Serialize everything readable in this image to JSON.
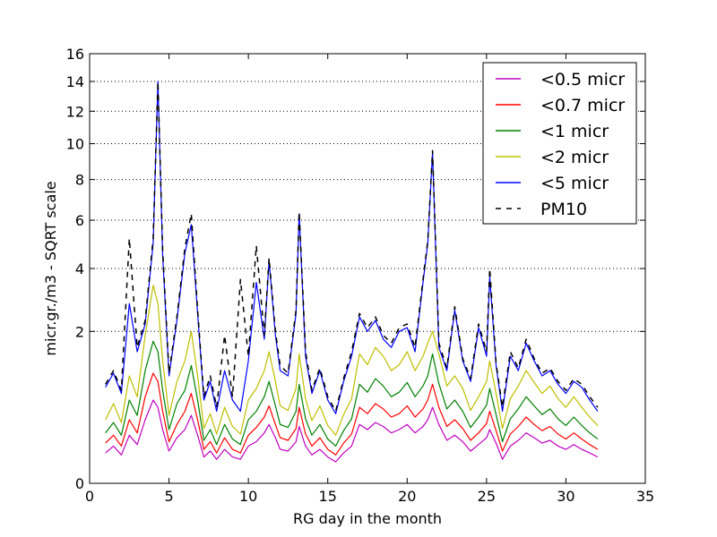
{
  "chart_data": {
    "type": "line",
    "title": "",
    "xlabel": "RG day in the month",
    "ylabel": "micr.gr./m3 - SQRT scale",
    "xlim": [
      0,
      35
    ],
    "ylim": [
      0,
      16
    ],
    "y_scale": "sqrt",
    "grid": "horizontal-dotted",
    "legend_placement": "top-right",
    "x_ticks": [
      0,
      5,
      10,
      15,
      20,
      25,
      30,
      35
    ],
    "y_ticks": [
      0,
      2,
      4,
      6,
      8,
      10,
      12,
      14,
      16
    ],
    "x": [
      1,
      1.5,
      2,
      2.5,
      3,
      3.5,
      4,
      4.3,
      4.6,
      5,
      5.5,
      6,
      6.4,
      6.8,
      7.2,
      7.6,
      8,
      8.5,
      9,
      9.5,
      10,
      10.5,
      11,
      11.3,
      11.7,
      12,
      12.5,
      13,
      13.2,
      13.6,
      14,
      14.5,
      15,
      15.5,
      16,
      16.5,
      17,
      17.5,
      18,
      18.5,
      19,
      19.5,
      20,
      20.5,
      21,
      21.3,
      21.6,
      22,
      22.5,
      23,
      23.5,
      24,
      24.5,
      25,
      25.2,
      25.6,
      26,
      26.5,
      27,
      27.5,
      28,
      28.5,
      29,
      29.5,
      30,
      30.5,
      31,
      31.5,
      32
    ],
    "series": [
      {
        "name": "<0.5 micr",
        "color": "#bf00bf",
        "dash": "solid",
        "values": [
          0.08,
          0.12,
          0.07,
          0.2,
          0.13,
          0.35,
          0.6,
          0.5,
          0.25,
          0.09,
          0.18,
          0.25,
          0.4,
          0.2,
          0.06,
          0.09,
          0.05,
          0.1,
          0.06,
          0.05,
          0.12,
          0.15,
          0.22,
          0.3,
          0.18,
          0.1,
          0.09,
          0.15,
          0.28,
          0.12,
          0.07,
          0.1,
          0.06,
          0.04,
          0.08,
          0.12,
          0.3,
          0.25,
          0.32,
          0.28,
          0.22,
          0.25,
          0.3,
          0.22,
          0.28,
          0.35,
          0.5,
          0.3,
          0.16,
          0.2,
          0.15,
          0.09,
          0.13,
          0.18,
          0.25,
          0.14,
          0.05,
          0.12,
          0.16,
          0.22,
          0.18,
          0.14,
          0.16,
          0.12,
          0.1,
          0.13,
          0.1,
          0.08,
          0.06
        ]
      },
      {
        "name": "<0.7 micr",
        "color": "#ff0000",
        "dash": "solid",
        "values": [
          0.14,
          0.2,
          0.12,
          0.35,
          0.22,
          0.65,
          1.05,
          0.9,
          0.45,
          0.15,
          0.3,
          0.45,
          0.7,
          0.35,
          0.1,
          0.15,
          0.08,
          0.18,
          0.1,
          0.08,
          0.2,
          0.27,
          0.38,
          0.52,
          0.3,
          0.18,
          0.16,
          0.26,
          0.5,
          0.21,
          0.12,
          0.18,
          0.1,
          0.07,
          0.14,
          0.21,
          0.5,
          0.42,
          0.55,
          0.48,
          0.38,
          0.42,
          0.52,
          0.38,
          0.48,
          0.6,
          0.85,
          0.5,
          0.28,
          0.35,
          0.26,
          0.16,
          0.22,
          0.31,
          0.45,
          0.24,
          0.09,
          0.21,
          0.28,
          0.38,
          0.3,
          0.24,
          0.28,
          0.21,
          0.17,
          0.22,
          0.17,
          0.13,
          0.1
        ]
      },
      {
        "name": "<1 micr",
        "color": "#008000",
        "dash": "solid",
        "values": [
          0.22,
          0.32,
          0.2,
          0.6,
          0.4,
          1.1,
          1.75,
          1.5,
          0.75,
          0.25,
          0.55,
          0.75,
          1.2,
          0.6,
          0.16,
          0.25,
          0.13,
          0.3,
          0.17,
          0.13,
          0.35,
          0.45,
          0.65,
          0.9,
          0.52,
          0.3,
          0.27,
          0.45,
          0.85,
          0.36,
          0.2,
          0.3,
          0.17,
          0.12,
          0.24,
          0.36,
          0.85,
          0.72,
          0.95,
          0.82,
          0.65,
          0.72,
          0.88,
          0.65,
          0.82,
          1.0,
          1.45,
          0.86,
          0.48,
          0.6,
          0.45,
          0.27,
          0.38,
          0.53,
          0.78,
          0.41,
          0.15,
          0.36,
          0.48,
          0.65,
          0.52,
          0.41,
          0.48,
          0.36,
          0.29,
          0.38,
          0.29,
          0.22,
          0.17
        ]
      },
      {
        "name": "<2 micr",
        "color": "#bfbf00",
        "dash": "solid",
        "values": [
          0.35,
          0.55,
          0.32,
          1.0,
          0.65,
          1.9,
          3.4,
          2.8,
          1.3,
          0.4,
          0.9,
          1.3,
          2.0,
          1.0,
          0.26,
          0.42,
          0.21,
          0.5,
          0.28,
          0.21,
          0.6,
          0.78,
          1.1,
          1.5,
          0.9,
          0.52,
          0.46,
          0.78,
          1.45,
          0.62,
          0.34,
          0.52,
          0.29,
          0.2,
          0.41,
          0.62,
          1.45,
          1.22,
          1.6,
          1.4,
          1.1,
          1.22,
          1.5,
          1.1,
          1.4,
          1.7,
          2.0,
          1.45,
          0.82,
          1.0,
          0.78,
          0.46,
          0.65,
          0.9,
          1.3,
          0.7,
          0.26,
          0.62,
          0.82,
          1.1,
          0.88,
          0.7,
          0.82,
          0.62,
          0.5,
          0.65,
          0.5,
          0.38,
          0.29
        ]
      },
      {
        "name": "<5 micr",
        "color": "#0000ff",
        "dash": "solid",
        "values": [
          0.8,
          1.05,
          0.7,
          2.8,
          1.5,
          2.2,
          5.0,
          14.0,
          4.5,
          1.0,
          2.3,
          4.6,
          5.8,
          2.5,
          0.6,
          0.9,
          0.45,
          1.1,
          0.6,
          0.45,
          1.3,
          3.5,
          1.8,
          4.3,
          1.9,
          1.1,
          1.0,
          2.5,
          6.3,
          1.4,
          0.7,
          1.1,
          0.6,
          0.42,
          0.9,
          1.4,
          2.4,
          2.0,
          2.3,
          1.8,
          1.6,
          2.0,
          2.1,
          1.5,
          3.5,
          5.0,
          9.5,
          1.6,
          1.1,
          2.6,
          1.3,
          0.9,
          2.1,
          1.4,
          3.7,
          1.2,
          0.45,
          1.4,
          1.1,
          1.7,
          1.3,
          1.0,
          1.1,
          0.85,
          0.7,
          0.9,
          0.8,
          0.6,
          0.45
        ]
      },
      {
        "name": "PM10",
        "color": "#000000",
        "dash": "dashed",
        "values": [
          0.85,
          1.1,
          0.75,
          5.2,
          1.6,
          2.3,
          5.2,
          14.0,
          4.7,
          1.05,
          2.4,
          4.8,
          6.3,
          2.6,
          0.65,
          1.0,
          0.5,
          1.9,
          0.65,
          3.6,
          1.4,
          4.9,
          1.9,
          4.4,
          2.0,
          1.2,
          1.05,
          2.6,
          6.4,
          1.5,
          0.75,
          1.15,
          0.65,
          0.45,
          0.95,
          1.5,
          2.5,
          2.1,
          2.4,
          1.9,
          1.7,
          2.1,
          2.2,
          1.6,
          3.6,
          5.1,
          9.6,
          1.7,
          1.15,
          2.7,
          1.35,
          0.95,
          2.2,
          1.5,
          4.0,
          1.25,
          0.5,
          1.5,
          1.15,
          1.8,
          1.35,
          1.05,
          1.15,
          0.9,
          0.75,
          0.95,
          0.85,
          0.65,
          0.5
        ]
      }
    ]
  }
}
